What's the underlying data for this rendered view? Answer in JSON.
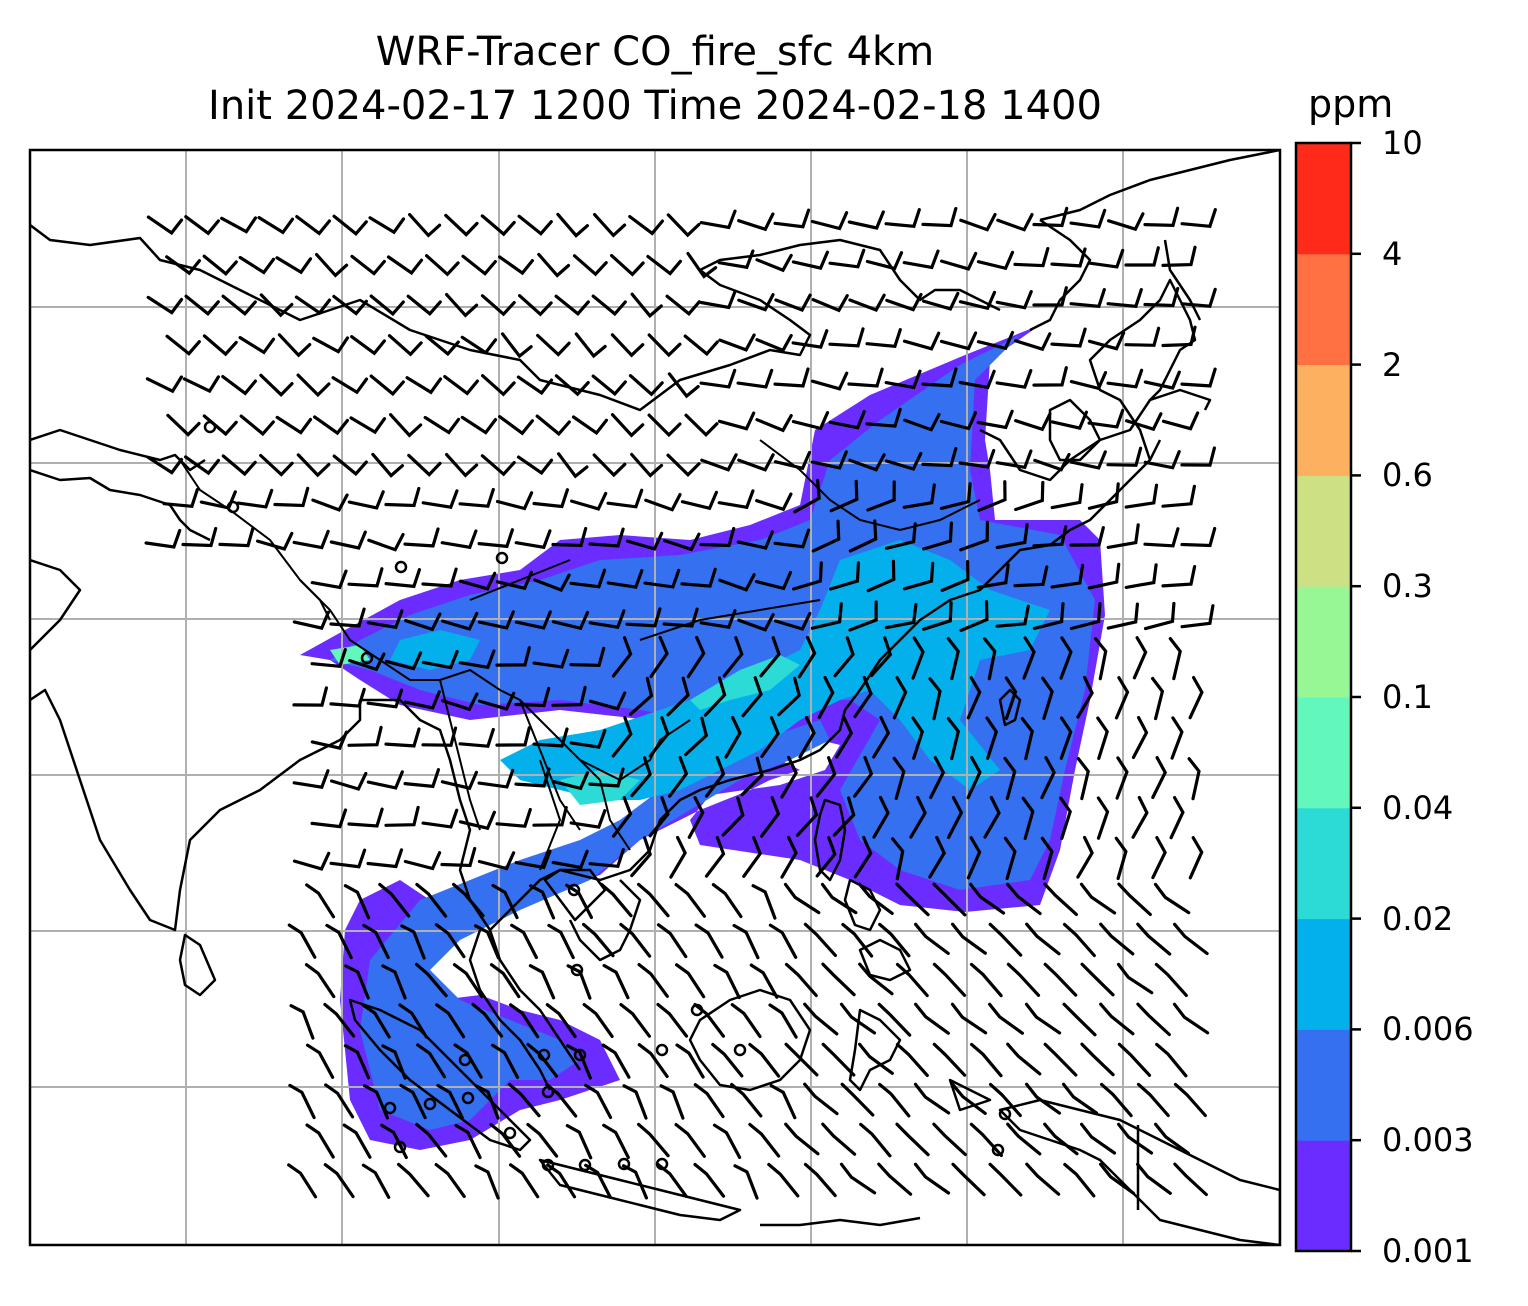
{
  "title": {
    "line1": "WRF-Tracer CO_fire_sfc 4km",
    "line2": "Init 2024-02-17 1200 Time 2024-02-18 1400"
  },
  "colorbar": {
    "unit": "ppm",
    "levels": [
      "0.001",
      "0.003",
      "0.006",
      "0.02",
      "0.04",
      "0.1",
      "0.3",
      "0.6",
      "2",
      "4",
      "10"
    ],
    "colors": [
      "#6a2cff",
      "#3470f0",
      "#04b0ec",
      "#2ddbd6",
      "#62f8bd",
      "#97f794",
      "#cde184",
      "#fdb05f",
      "#ff7143",
      "#ff2a1a"
    ]
  },
  "map": {
    "field": "CO_fire_sfc",
    "overlays": [
      "coastlines",
      "country-borders",
      "gridlines",
      "wind-barbs"
    ],
    "gridlines": true
  }
}
